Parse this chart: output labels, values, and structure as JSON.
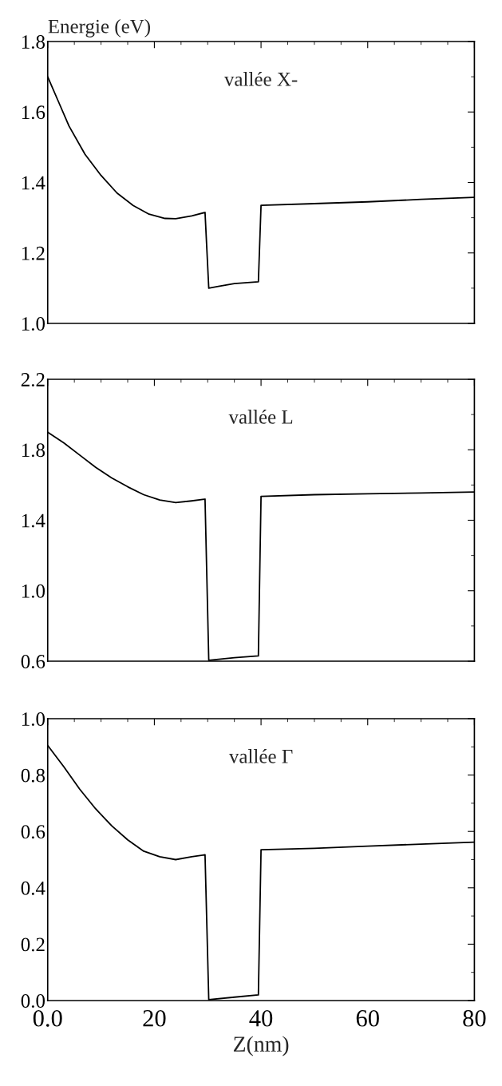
{
  "chart_data": [
    {
      "type": "line",
      "ylabel": "Energie (eV)",
      "annotations": [
        "vallée X-"
      ],
      "tick_labels": "y",
      "grid": false,
      "xlim": [
        0,
        80
      ],
      "ylim": [
        1.0,
        1.8
      ],
      "xticks": [
        {
          "value": 0,
          "label": null
        },
        {
          "value": 20,
          "label": null
        },
        {
          "value": 40,
          "label": null
        },
        {
          "value": 60,
          "label": null
        },
        {
          "value": 80,
          "label": null
        }
      ],
      "yticks": [
        {
          "value": 1.0,
          "label": "1.0"
        },
        {
          "value": 1.2,
          "label": "1.2"
        },
        {
          "value": 1.4,
          "label": "1.4"
        },
        {
          "value": 1.6,
          "label": "1.6"
        },
        {
          "value": 1.8,
          "label": "1.8"
        }
      ],
      "series": [
        {
          "color": "#000000",
          "x": [
            0,
            2,
            4,
            7,
            10,
            13,
            16,
            19,
            22,
            24,
            27,
            29.5,
            30.2,
            32,
            35,
            39.5,
            40,
            50,
            60,
            70,
            80
          ],
          "values": [
            1.7,
            1.63,
            1.56,
            1.48,
            1.42,
            1.37,
            1.335,
            1.31,
            1.298,
            1.297,
            1.305,
            1.315,
            1.1,
            1.105,
            1.113,
            1.118,
            1.335,
            1.34,
            1.345,
            1.352,
            1.358
          ]
        }
      ]
    },
    {
      "type": "line",
      "annotations": [
        "vallée L"
      ],
      "tick_labels": "y",
      "grid": false,
      "xlim": [
        0,
        80
      ],
      "ylim": [
        0.6,
        2.2
      ],
      "xticks": [
        {
          "value": 0,
          "label": null
        },
        {
          "value": 20,
          "label": null
        },
        {
          "value": 40,
          "label": null
        },
        {
          "value": 60,
          "label": null
        },
        {
          "value": 80,
          "label": null
        }
      ],
      "yticks": [
        {
          "value": 0.6,
          "label": "0.6"
        },
        {
          "value": 1.0,
          "label": "1.0"
        },
        {
          "value": 1.4,
          "label": "1.4"
        },
        {
          "value": 1.8,
          "label": "1.8"
        },
        {
          "value": 2.2,
          "label": "2.2"
        }
      ],
      "series": [
        {
          "color": "#000000",
          "x": [
            0,
            3,
            6,
            9,
            12,
            15,
            18,
            21,
            24,
            27,
            29.5,
            30.2,
            35,
            39.5,
            40,
            50,
            60,
            70,
            80
          ],
          "values": [
            1.9,
            1.84,
            1.77,
            1.7,
            1.64,
            1.59,
            1.545,
            1.515,
            1.5,
            1.51,
            1.52,
            0.605,
            0.62,
            0.63,
            1.535,
            1.545,
            1.55,
            1.555,
            1.56
          ]
        }
      ]
    },
    {
      "type": "line",
      "xlabel": "Z(nm)",
      "annotations": [
        "vallée Γ"
      ],
      "grid": false,
      "xlim": [
        0,
        80
      ],
      "ylim": [
        0.0,
        1.0
      ],
      "xticks": [
        {
          "value": 0,
          "label": "0.0"
        },
        20,
        40,
        60,
        80
      ],
      "yticks": [
        {
          "value": 0.0,
          "label": "0.0"
        },
        {
          "value": 0.2,
          "label": "0.2"
        },
        {
          "value": 0.4,
          "label": "0.4"
        },
        {
          "value": 0.6,
          "label": "0.6"
        },
        {
          "value": 0.8,
          "label": "0.8"
        },
        {
          "value": 1.0,
          "label": "1.0"
        }
      ],
      "series": [
        {
          "color": "#000000",
          "x": [
            0,
            3,
            6,
            9,
            12,
            15,
            18,
            21,
            24,
            27,
            29.5,
            30.2,
            35,
            39.5,
            40,
            50,
            60,
            70,
            80
          ],
          "values": [
            0.905,
            0.83,
            0.75,
            0.68,
            0.62,
            0.57,
            0.53,
            0.51,
            0.5,
            0.51,
            0.517,
            0.003,
            0.012,
            0.02,
            0.535,
            0.54,
            0.548,
            0.555,
            0.562
          ]
        }
      ]
    }
  ]
}
